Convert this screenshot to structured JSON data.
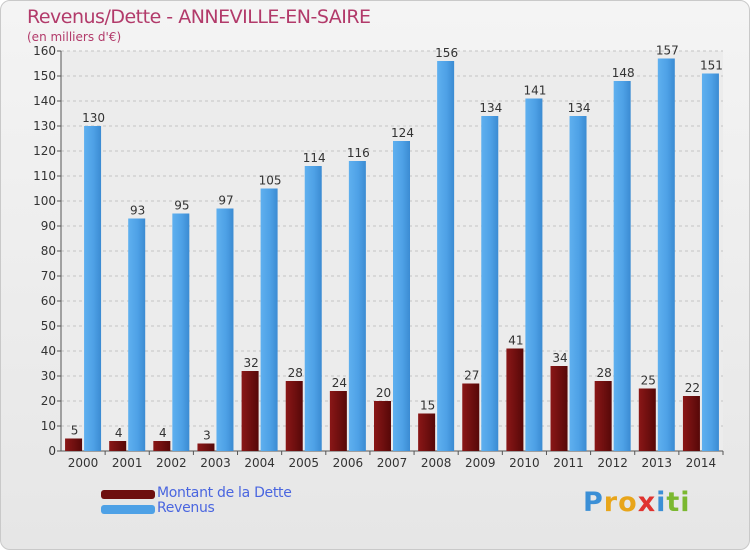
{
  "header": {
    "title": "Revenus/Dette - ANNEVILLE-EN-SAIRE",
    "subtitle": "(en milliers d'€)"
  },
  "chart_data": {
    "type": "bar",
    "categories": [
      "2000",
      "2001",
      "2002",
      "2003",
      "2004",
      "2005",
      "2006",
      "2007",
      "2008",
      "2009",
      "2010",
      "2011",
      "2012",
      "2013",
      "2014"
    ],
    "series": [
      {
        "name": "Montant de la Dette",
        "color": "#6e0f0f",
        "values": [
          5,
          4,
          4,
          3,
          32,
          28,
          24,
          20,
          15,
          27,
          41,
          34,
          28,
          25,
          22
        ]
      },
      {
        "name": "Revenus",
        "color": "#4ea1e6",
        "values": [
          130,
          93,
          95,
          97,
          105,
          114,
          116,
          124,
          156,
          134,
          141,
          134,
          148,
          157,
          151
        ]
      }
    ],
    "ylim": [
      0,
      160
    ],
    "yticks": [
      0,
      10,
      20,
      30,
      40,
      50,
      60,
      70,
      80,
      90,
      100,
      110,
      120,
      130,
      140,
      150,
      160
    ],
    "grid": true,
    "legend_position": "bottom-left"
  },
  "legend": {
    "items": [
      {
        "label": "Montant de la Dette",
        "color": "#6e0f0f"
      },
      {
        "label": "Revenus",
        "color": "#4ea1e6"
      }
    ]
  },
  "logo": {
    "letters": [
      {
        "char": "P",
        "color": "#3b8fd6"
      },
      {
        "char": "r",
        "color": "#e8a51a"
      },
      {
        "char": "o",
        "color": "#e8a51a"
      },
      {
        "char": "x",
        "color": "#e0322f"
      },
      {
        "char": "i",
        "color": "#3b8fd6"
      },
      {
        "char": "t",
        "color": "#7bb830"
      },
      {
        "char": "i",
        "color": "#7bb830"
      }
    ]
  }
}
